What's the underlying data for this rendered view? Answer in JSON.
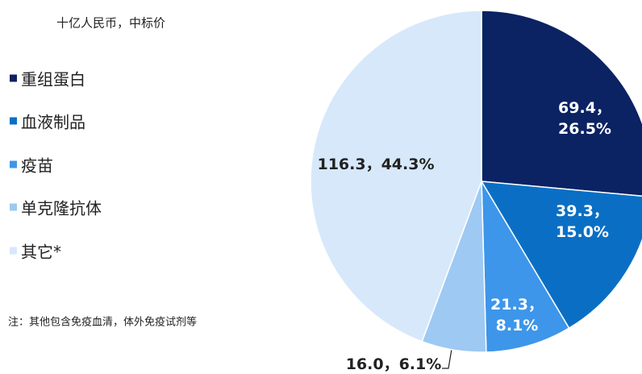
{
  "chart_data": {
    "type": "pie",
    "subtitle": "十亿人民币，中标价",
    "categories": [
      "重组蛋白",
      "血液制品",
      "疫苗",
      "单克隆抗体",
      "其它*"
    ],
    "values": [
      69.4,
      39.3,
      21.3,
      16.0,
      116.3
    ],
    "value_labels": [
      "69.4，26.5%",
      "39.3，15.0%",
      "21.3，\n8.1%",
      "16.0，6.1%",
      "116.3，44.3%"
    ],
    "colors": [
      "#0b2263",
      "#0a6fc4",
      "#3d96e9",
      "#9dc9f3",
      "#d7e8fb"
    ],
    "legend": "left",
    "annotation": "注：其他包含免疫血清，体外免疫试剂等"
  }
}
